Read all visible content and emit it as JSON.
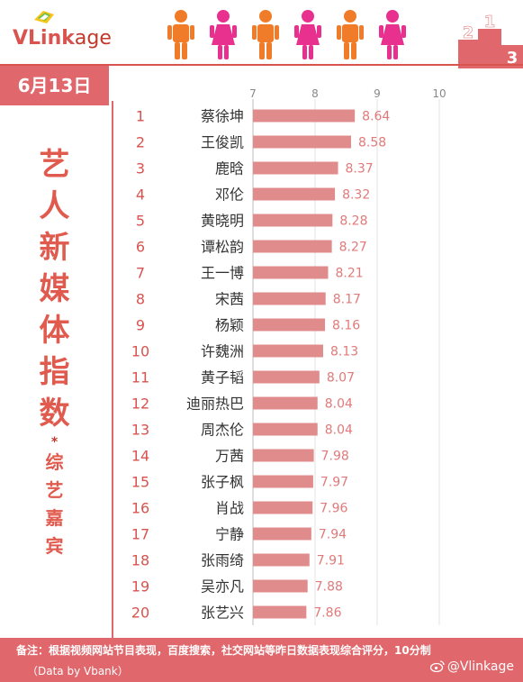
{
  "brand": {
    "logo_bold": "VLink",
    "logo_rest": "age"
  },
  "podium": {
    "first": "1",
    "second": "2",
    "third": "3"
  },
  "date": "6月13日",
  "title_chars": [
    "艺",
    "人",
    "新",
    "媒",
    "体",
    "指",
    "数"
  ],
  "title_star": "*",
  "subtitle_chars": [
    "综",
    "艺",
    "嘉",
    "宾"
  ],
  "footer": {
    "note": "备注：根据视频网站节目表现，百度搜索，社交网站等昨日数据表现综合评分，10分制",
    "source": "（Data by Vbank）",
    "weibo": "@Vlinkage"
  },
  "colors": {
    "accent": "#e0676b",
    "bar": "#e08c8c",
    "bar_label": "#e07a7a",
    "rank": "#d9534f",
    "figure_orange": "#f07c2a",
    "figure_pink": "#e8308f"
  },
  "chart_data": {
    "type": "bar",
    "orientation": "horizontal",
    "title": "",
    "xlabel": "",
    "ylabel": "",
    "xlim": [
      7,
      10
    ],
    "xticks": [
      7,
      8,
      9,
      10
    ],
    "grid": true,
    "ranks": [
      "1",
      "2",
      "3",
      "4",
      "5",
      "6",
      "7",
      "8",
      "9",
      "10",
      "11",
      "12",
      "13",
      "14",
      "15",
      "16",
      "17",
      "18",
      "19",
      "20"
    ],
    "categories": [
      "蔡徐坤",
      "王俊凯",
      "鹿晗",
      "邓伦",
      "黄晓明",
      "谭松韵",
      "王一博",
      "宋茜",
      "杨颖",
      "许魏洲",
      "黄子韬",
      "迪丽热巴",
      "周杰伦",
      "万茜",
      "张子枫",
      "肖战",
      "宁静",
      "张雨绮",
      "吴亦凡",
      "张艺兴"
    ],
    "values": [
      8.64,
      8.58,
      8.37,
      8.32,
      8.28,
      8.27,
      8.21,
      8.17,
      8.16,
      8.13,
      8.07,
      8.04,
      8.04,
      7.98,
      7.97,
      7.96,
      7.94,
      7.91,
      7.88,
      7.86
    ],
    "value_labels": [
      "8.64",
      "8.58",
      "8.37",
      "8.32",
      "8.28",
      "8.27",
      "8.21",
      "8.17",
      "8.16",
      "8.13",
      "8.07",
      "8.04",
      "8.04",
      "7.98",
      "7.97",
      "7.96",
      "7.94",
      "7.91",
      "7.88",
      "7.86"
    ]
  }
}
